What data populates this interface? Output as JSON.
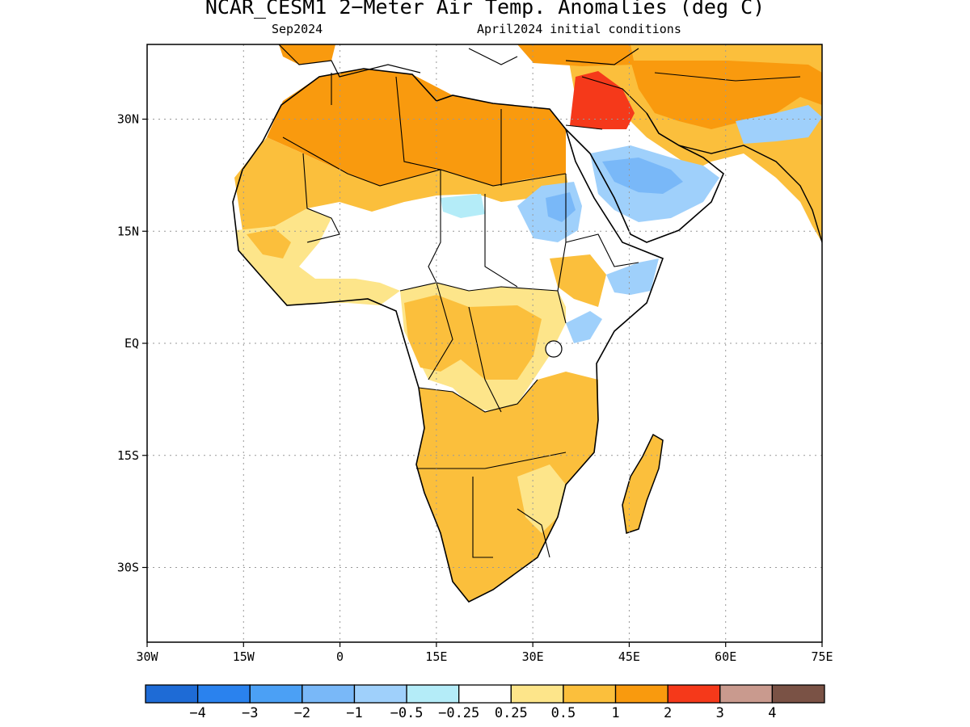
{
  "title": "NCAR_CESM1 2−Meter Air Temp. Anomalies (deg C)",
  "subtitle_left": "Sep2024",
  "subtitle_right": "April2024 initial conditions",
  "map": {
    "lon_range": [
      -30,
      75
    ],
    "lat_range": [
      -40,
      40
    ],
    "lat_ticks": [
      {
        "value": 30,
        "label": "30N"
      },
      {
        "value": 15,
        "label": "15N"
      },
      {
        "value": 0,
        "label": "EQ"
      },
      {
        "value": -15,
        "label": "15S"
      },
      {
        "value": -30,
        "label": "30S"
      }
    ],
    "lon_ticks": [
      {
        "value": -30,
        "label": "30W"
      },
      {
        "value": -15,
        "label": "15W"
      },
      {
        "value": 0,
        "label": "0"
      },
      {
        "value": 15,
        "label": "15E"
      },
      {
        "value": 30,
        "label": "30E"
      },
      {
        "value": 45,
        "label": "45E"
      },
      {
        "value": 60,
        "label": "60E"
      },
      {
        "value": 75,
        "label": "75E"
      }
    ],
    "grid_lines": "dotted"
  },
  "colorbar": {
    "colors": [
      "#1e6bd6",
      "#2a82ee",
      "#4ba0f5",
      "#79b8f8",
      "#9fd0fb",
      "#b4ecf8",
      "#ffffff",
      "#fde58a",
      "#fbbf3c",
      "#f99a0e",
      "#f5391a",
      "#c99a8e",
      "#7a5245"
    ],
    "labels": [
      "−4",
      "−3",
      "−2",
      "−1",
      "−0.5",
      "−0.25",
      "0.25",
      "0.5",
      "1",
      "2",
      "3",
      "4"
    ]
  }
}
